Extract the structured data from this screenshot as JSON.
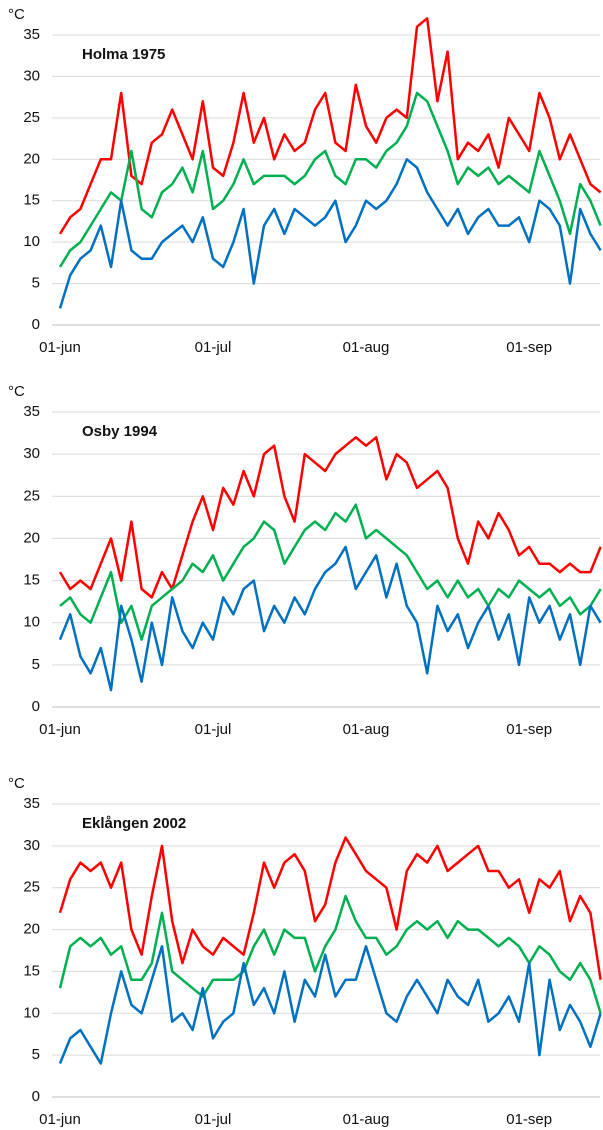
{
  "chart_data": [
    {
      "type": "line",
      "title": "Holma 1975",
      "y_label": "°C",
      "categories": [
        "01-jun",
        null,
        null,
        null,
        null,
        null,
        null,
        null,
        null,
        null,
        null,
        null,
        null,
        null,
        null,
        "01-jul",
        null,
        null,
        null,
        null,
        null,
        null,
        null,
        null,
        null,
        null,
        null,
        null,
        null,
        null,
        "01-aug",
        null,
        null,
        null,
        null,
        null,
        null,
        null,
        null,
        null,
        null,
        null,
        null,
        null,
        null,
        null,
        "01-sep",
        null,
        null,
        null,
        null,
        null,
        null,
        null
      ],
      "series": [
        {
          "color": "#ff0000",
          "values": [
            11,
            13,
            14,
            17,
            20,
            20,
            28,
            18,
            17,
            22,
            23,
            26,
            23,
            20,
            27,
            19,
            18,
            22,
            28,
            22,
            25,
            20,
            23,
            21,
            22,
            26,
            28,
            22,
            21,
            29,
            24,
            22,
            25,
            26,
            25,
            36,
            37,
            27,
            33,
            20,
            22,
            21,
            23,
            19,
            25,
            23,
            21,
            28,
            25,
            20,
            23,
            20,
            17,
            16
          ]
        },
        {
          "color": "#00b050",
          "values": [
            7,
            9,
            10,
            12,
            14,
            16,
            15,
            21,
            14,
            13,
            16,
            17,
            19,
            16,
            21,
            14,
            15,
            17,
            20,
            17,
            18,
            18,
            18,
            17,
            18,
            20,
            21,
            18,
            17,
            20,
            20,
            19,
            21,
            22,
            24,
            28,
            27,
            24,
            21,
            17,
            19,
            18,
            19,
            17,
            18,
            17,
            16,
            21,
            18,
            15,
            11,
            17,
            15,
            12
          ]
        },
        {
          "color": "#0070c0",
          "values": [
            2,
            6,
            8,
            9,
            12,
            7,
            15,
            9,
            8,
            8,
            10,
            11,
            12,
            10,
            13,
            8,
            7,
            10,
            14,
            5,
            12,
            14,
            11,
            14,
            13,
            12,
            13,
            15,
            10,
            12,
            15,
            14,
            15,
            17,
            20,
            19,
            16,
            14,
            12,
            14,
            11,
            13,
            14,
            12,
            12,
            13,
            10,
            15,
            14,
            12,
            5,
            14,
            11,
            9
          ]
        }
      ],
      "ylim": [
        0,
        35
      ],
      "yticks": [
        0,
        5,
        10,
        15,
        20,
        25,
        30,
        35
      ],
      "grid": true
    },
    {
      "type": "line",
      "title": "Osby 1994",
      "y_label": "°C",
      "categories": [
        "01-jun",
        null,
        null,
        null,
        null,
        null,
        null,
        null,
        null,
        null,
        null,
        null,
        null,
        null,
        null,
        "01-jul",
        null,
        null,
        null,
        null,
        null,
        null,
        null,
        null,
        null,
        null,
        null,
        null,
        null,
        null,
        "01-aug",
        null,
        null,
        null,
        null,
        null,
        null,
        null,
        null,
        null,
        null,
        null,
        null,
        null,
        null,
        null,
        "01-sep",
        null,
        null,
        null,
        null,
        null,
        null,
        null
      ],
      "series": [
        {
          "color": "#ff0000",
          "values": [
            16,
            14,
            15,
            14,
            17,
            20,
            15,
            22,
            14,
            13,
            16,
            14,
            18,
            22,
            25,
            21,
            26,
            24,
            28,
            25,
            30,
            31,
            25,
            22,
            30,
            29,
            28,
            30,
            31,
            32,
            31,
            32,
            27,
            30,
            29,
            26,
            27,
            28,
            26,
            20,
            17,
            22,
            20,
            23,
            21,
            18,
            19,
            17,
            17,
            16,
            17,
            16,
            16,
            19
          ]
        },
        {
          "color": "#00b050",
          "values": [
            12,
            13,
            11,
            10,
            13,
            16,
            10,
            12,
            8,
            12,
            13,
            14,
            15,
            17,
            16,
            18,
            15,
            17,
            19,
            20,
            22,
            21,
            17,
            19,
            21,
            22,
            21,
            23,
            22,
            24,
            20,
            21,
            20,
            19,
            18,
            16,
            14,
            15,
            13,
            15,
            13,
            14,
            12,
            14,
            13,
            15,
            14,
            13,
            14,
            12,
            13,
            11,
            12,
            14
          ]
        },
        {
          "color": "#0070c0",
          "values": [
            8,
            11,
            6,
            4,
            7,
            2,
            12,
            8,
            3,
            10,
            5,
            13,
            9,
            7,
            10,
            8,
            13,
            11,
            14,
            15,
            9,
            12,
            10,
            13,
            11,
            14,
            16,
            17,
            19,
            14,
            16,
            18,
            13,
            17,
            12,
            10,
            4,
            12,
            9,
            11,
            7,
            10,
            12,
            8,
            11,
            5,
            13,
            10,
            12,
            8,
            11,
            5,
            12,
            10
          ]
        }
      ],
      "ylim": [
        0,
        35
      ],
      "yticks": [
        0,
        5,
        10,
        15,
        20,
        25,
        30,
        35
      ],
      "grid": true
    },
    {
      "type": "line",
      "title": "Eklången 2002",
      "y_label": "°C",
      "categories": [
        "01-jun",
        null,
        null,
        null,
        null,
        null,
        null,
        null,
        null,
        null,
        null,
        null,
        null,
        null,
        null,
        "01-jul",
        null,
        null,
        null,
        null,
        null,
        null,
        null,
        null,
        null,
        null,
        null,
        null,
        null,
        null,
        "01-aug",
        null,
        null,
        null,
        null,
        null,
        null,
        null,
        null,
        null,
        null,
        null,
        null,
        null,
        null,
        null,
        "01-sep",
        null,
        null,
        null,
        null,
        null,
        null,
        null
      ],
      "series": [
        {
          "color": "#ff0000",
          "values": [
            22,
            26,
            28,
            27,
            28,
            25,
            28,
            20,
            17,
            24,
            30,
            21,
            16,
            20,
            18,
            17,
            19,
            18,
            17,
            22,
            28,
            25,
            28,
            29,
            27,
            21,
            23,
            28,
            31,
            29,
            27,
            26,
            25,
            20,
            27,
            29,
            28,
            30,
            27,
            28,
            29,
            30,
            27,
            27,
            25,
            26,
            22,
            26,
            25,
            27,
            21,
            24,
            22,
            14
          ]
        },
        {
          "color": "#00b050",
          "values": [
            13,
            18,
            19,
            18,
            19,
            17,
            18,
            14,
            14,
            16,
            22,
            15,
            14,
            13,
            12,
            14,
            14,
            14,
            15,
            18,
            20,
            17,
            20,
            19,
            19,
            15,
            18,
            20,
            24,
            21,
            19,
            19,
            17,
            18,
            20,
            21,
            20,
            21,
            19,
            21,
            20,
            20,
            19,
            18,
            19,
            18,
            16,
            18,
            17,
            15,
            14,
            16,
            14,
            10
          ]
        },
        {
          "color": "#0070c0",
          "values": [
            4,
            7,
            8,
            6,
            4,
            10,
            15,
            11,
            10,
            14,
            18,
            9,
            10,
            8,
            13,
            7,
            9,
            10,
            16,
            11,
            13,
            10,
            15,
            9,
            14,
            12,
            17,
            12,
            14,
            14,
            18,
            14,
            10,
            9,
            12,
            14,
            12,
            10,
            14,
            12,
            11,
            14,
            9,
            10,
            12,
            9,
            16,
            5,
            14,
            8,
            11,
            9,
            6,
            10
          ]
        }
      ],
      "ylim": [
        0,
        35
      ],
      "yticks": [
        0,
        5,
        10,
        15,
        20,
        25,
        30,
        35
      ],
      "grid": true
    }
  ]
}
